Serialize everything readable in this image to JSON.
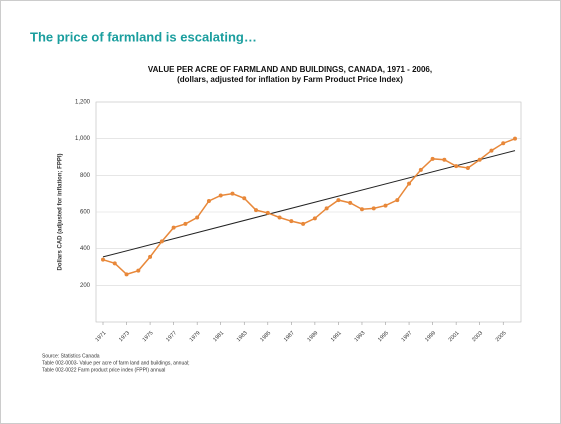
{
  "heading": "The price of farmland is escalating…",
  "chart_data": {
    "type": "line",
    "title": "VALUE PER ACRE OF FARMLAND AND BUILDINGS, CANADA, 1971 - 2006,",
    "subtitle": "(dollars, adjusted for inflation by Farm Product Price Index)",
    "ylabel": "Dollars CAD (adjusted for inflation; FPPI)",
    "x": [
      1971,
      1972,
      1973,
      1974,
      1975,
      1976,
      1977,
      1978,
      1979,
      1980,
      1981,
      1982,
      1983,
      1984,
      1985,
      1986,
      1987,
      1988,
      1989,
      1990,
      1991,
      1992,
      1993,
      1994,
      1995,
      1996,
      1997,
      1998,
      1999,
      2000,
      2001,
      2002,
      2003,
      2004,
      2005,
      2006
    ],
    "series": [
      {
        "color": "#e8883a",
        "values": [
          340,
          320,
          260,
          280,
          355,
          440,
          515,
          535,
          570,
          660,
          690,
          700,
          675,
          610,
          595,
          570,
          550,
          535,
          565,
          620,
          665,
          650,
          615,
          620,
          635,
          665,
          755,
          830,
          890,
          885,
          850,
          840,
          885,
          935,
          975,
          1000
        ]
      }
    ],
    "trend": {
      "color": "#222222",
      "x": [
        1971,
        2006
      ],
      "values": [
        355,
        935
      ]
    },
    "xlim": [
      1971,
      2006
    ],
    "xticks": [
      1971,
      1973,
      1975,
      1977,
      1979,
      1981,
      1983,
      1985,
      1987,
      1989,
      1991,
      1993,
      1995,
      1997,
      1999,
      2001,
      2003,
      2005
    ],
    "ylim": [
      0,
      1200
    ],
    "yticks": [
      {
        "value": 200,
        "label": "200"
      },
      {
        "value": 400,
        "label": "400"
      },
      {
        "value": 600,
        "label": "600"
      },
      {
        "value": 800,
        "label": "800"
      },
      {
        "value": 1000,
        "label": "1,000"
      },
      {
        "value": 1200,
        "label": "1,200"
      }
    ],
    "grid": true
  },
  "source": [
    "Source:  Statistics Canada",
    "Table 002-0003- Value per acre of farm land and buildings, annual;",
    "Table 002-0022 Farm product price index (FPPI) annual"
  ]
}
